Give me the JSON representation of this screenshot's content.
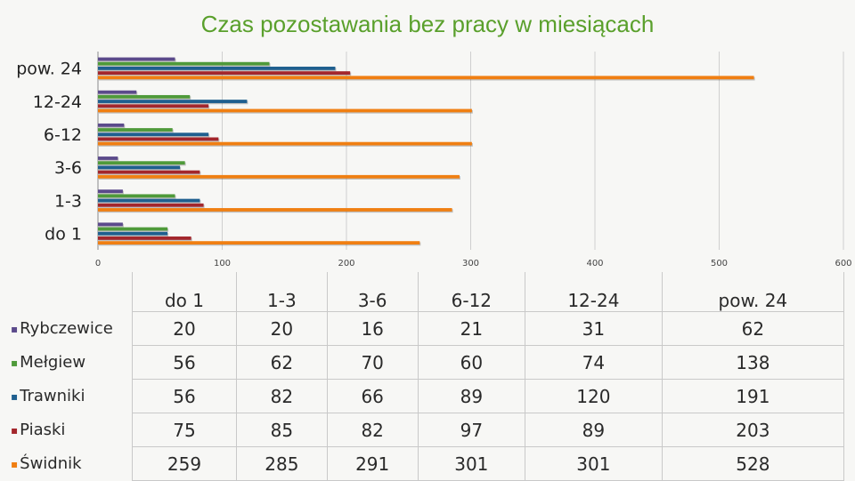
{
  "chart_data": {
    "type": "bar",
    "orientation": "horizontal",
    "title": "Czas pozostawania bez pracy w miesiącach",
    "categories": [
      "do 1",
      "1-3",
      "3-6",
      "6-12",
      "12-24",
      "pow. 24"
    ],
    "xlim": [
      0,
      600
    ],
    "xticks": [
      "0",
      "100",
      "200",
      "300",
      "400",
      "500",
      "600"
    ],
    "grid": true,
    "series": [
      {
        "name": "Rybczewice",
        "color": "#5b4a8b",
        "values": [
          20,
          20,
          16,
          21,
          31,
          62
        ]
      },
      {
        "name": "Mełgiew",
        "color": "#4f9a3a",
        "values": [
          56,
          62,
          70,
          60,
          74,
          138
        ]
      },
      {
        "name": "Trawniki",
        "color": "#1f5f8f",
        "values": [
          56,
          82,
          66,
          89,
          120,
          191
        ]
      },
      {
        "name": "Piaski",
        "color": "#a3262c",
        "values": [
          75,
          85,
          82,
          97,
          89,
          203
        ]
      },
      {
        "name": "Świdnik",
        "color": "#f07f12",
        "values": [
          259,
          285,
          291,
          301,
          301,
          528
        ]
      }
    ]
  },
  "table": {
    "headers": [
      "do 1",
      "1-3",
      "3-6",
      "6-12",
      "12-24",
      "pow. 24"
    ],
    "rows": [
      {
        "label": "Rybczewice",
        "swatch": "▪",
        "values": [
          "20",
          "20",
          "16",
          "21",
          "31",
          "62"
        ]
      },
      {
        "label": "Mełgiew",
        "swatch": "▪",
        "values": [
          "56",
          "62",
          "70",
          "60",
          "74",
          "138"
        ]
      },
      {
        "label": "Trawniki",
        "swatch": "▪",
        "values": [
          "56",
          "82",
          "66",
          "89",
          "120",
          "191"
        ]
      },
      {
        "label": "Piaski",
        "swatch": "▪",
        "values": [
          "75",
          "85",
          "82",
          "97",
          "89",
          "203"
        ]
      },
      {
        "label": "Świdnik",
        "swatch": "▪",
        "values": [
          "259",
          "285",
          "291",
          "301",
          "301",
          "528"
        ]
      }
    ]
  }
}
